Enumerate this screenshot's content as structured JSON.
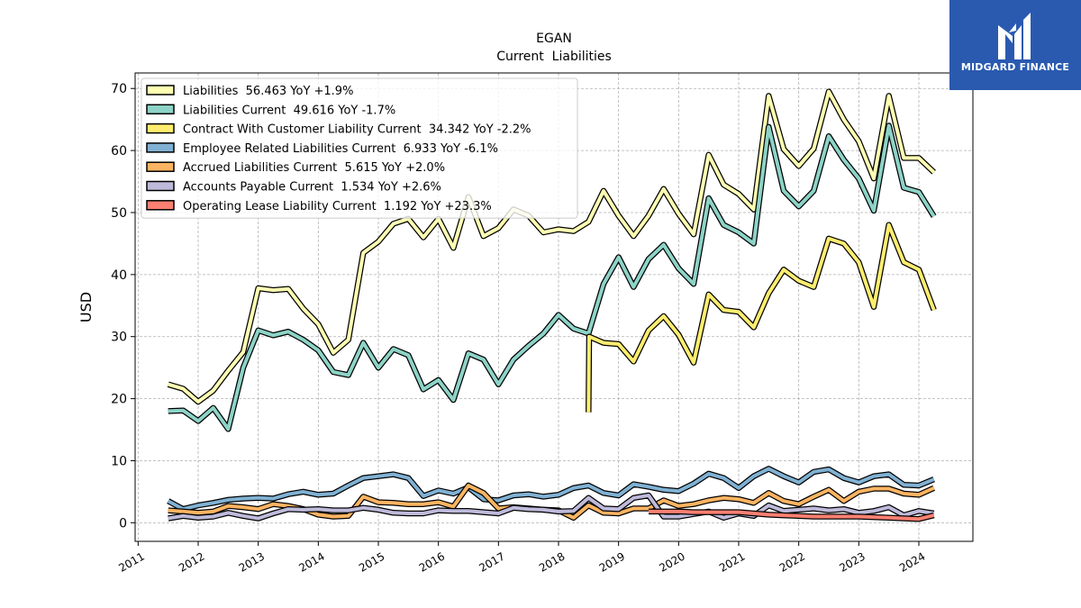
{
  "chart_data": {
    "type": "line",
    "title": "EGAN",
    "subtitle": "Current  Liabilities",
    "ylabel": "USD",
    "xlabel": "",
    "ylim": [
      -3,
      72.5
    ],
    "yticks": [
      0,
      10,
      20,
      30,
      40,
      50,
      60,
      70
    ],
    "xlim": [
      2010.95,
      2024.9
    ],
    "xticks": [
      2011,
      2012,
      2013,
      2014,
      2015,
      2016,
      2017,
      2018,
      2019,
      2020,
      2021,
      2022,
      2023,
      2024
    ],
    "xtick_labels": [
      "2011",
      "2012",
      "2013",
      "2014",
      "2015",
      "2016",
      "2017",
      "2018",
      "2019",
      "2020",
      "2021",
      "2022",
      "2023",
      "2024"
    ],
    "grid": true,
    "legend_position": "top-left",
    "series": [
      {
        "name": "Liabilities",
        "legend_label": "Liabilities  56.463 YoY +1.9%",
        "color": "#ffffb3",
        "x": [
          2011.5,
          2011.75,
          2012.0,
          2012.25,
          2012.5,
          2012.75,
          2013.0,
          2013.25,
          2013.5,
          2013.75,
          2014.0,
          2014.25,
          2014.5,
          2014.75,
          2015.0,
          2015.25,
          2015.5,
          2015.75,
          2016.0,
          2016.25,
          2016.5,
          2016.75,
          2017.0,
          2017.25,
          2017.5,
          2017.75,
          2018.0,
          2018.25,
          2018.5,
          2018.75,
          2019.0,
          2019.25,
          2019.5,
          2019.75,
          2020.0,
          2020.25,
          2020.5,
          2020.75,
          2021.0,
          2021.25,
          2021.5,
          2021.75,
          2022.0,
          2022.25,
          2022.5,
          2022.75,
          2023.0,
          2023.25,
          2023.5,
          2023.75,
          2024.0,
          2024.25
        ],
        "values": [
          22.3,
          21.6,
          19.5,
          21.3,
          24.5,
          27.5,
          37.8,
          37.5,
          37.7,
          34.5,
          32.0,
          27.4,
          29.5,
          43.5,
          45.3,
          48.2,
          49.0,
          46.0,
          49.0,
          44.3,
          52.5,
          46.2,
          47.5,
          50.5,
          49.5,
          46.8,
          47.3,
          47.0,
          48.5,
          53.5,
          49.5,
          46.2,
          49.5,
          53.8,
          49.8,
          46.5,
          59.3,
          54.5,
          53.0,
          50.5,
          68.8,
          60.2,
          57.5,
          60.3,
          69.5,
          65.0,
          61.5,
          55.5,
          68.8,
          58.8,
          58.8,
          56.5
        ]
      },
      {
        "name": "Liabilities Current",
        "legend_label": "Liabilities Current  49.616 YoY -1.7%",
        "color": "#8dd3c7",
        "x": [
          2011.5,
          2011.75,
          2012.0,
          2012.25,
          2012.5,
          2012.75,
          2013.0,
          2013.25,
          2013.5,
          2013.75,
          2014.0,
          2014.25,
          2014.5,
          2014.75,
          2015.0,
          2015.25,
          2015.5,
          2015.75,
          2016.0,
          2016.25,
          2016.5,
          2016.75,
          2017.0,
          2017.25,
          2017.5,
          2017.75,
          2018.0,
          2018.25,
          2018.5,
          2018.75,
          2019.0,
          2019.25,
          2019.5,
          2019.75,
          2020.0,
          2020.25,
          2020.5,
          2020.75,
          2021.0,
          2021.25,
          2021.5,
          2021.75,
          2022.0,
          2022.25,
          2022.5,
          2022.75,
          2023.0,
          2023.25,
          2023.5,
          2023.75,
          2024.0,
          2024.25
        ],
        "values": [
          18.0,
          18.1,
          16.4,
          18.5,
          15.1,
          25.0,
          31.0,
          30.2,
          30.8,
          29.5,
          27.8,
          24.3,
          23.8,
          29.0,
          25.0,
          28.0,
          27.0,
          21.5,
          23.0,
          19.8,
          27.3,
          26.3,
          22.3,
          26.3,
          28.5,
          30.5,
          33.5,
          31.3,
          30.5,
          38.5,
          42.8,
          38.0,
          42.5,
          44.8,
          41.0,
          38.5,
          52.3,
          48.0,
          46.8,
          45.0,
          63.8,
          53.5,
          51.0,
          53.5,
          62.3,
          58.5,
          55.5,
          50.3,
          64.0,
          54.0,
          53.3,
          49.4
        ]
      },
      {
        "name": "Contract With Customer Liability Current",
        "legend_label": "Contract With Customer Liability Current  34.342 YoY -2.2%",
        "color": "#ffed6f",
        "x": [
          2018.5,
          2018.51,
          2018.75,
          2019.0,
          2019.25,
          2019.5,
          2019.75,
          2020.0,
          2020.25,
          2020.5,
          2020.75,
          2021.0,
          2021.25,
          2021.5,
          2021.75,
          2022.0,
          2022.25,
          2022.5,
          2022.75,
          2023.0,
          2023.25,
          2023.5,
          2023.75,
          2024.0,
          2024.25
        ],
        "values": [
          17.8,
          30.0,
          29.0,
          28.8,
          26.0,
          31.0,
          33.3,
          30.3,
          25.8,
          36.8,
          34.3,
          34.0,
          31.5,
          37.0,
          40.8,
          39.0,
          38.0,
          45.8,
          45.0,
          42.0,
          34.8,
          48.0,
          42.0,
          40.8,
          34.3
        ]
      },
      {
        "name": "Employee Related Liabilities Current",
        "legend_label": "Employee Related Liabilities Current  6.933 YoY -6.1%",
        "color": "#80b1d3",
        "x": [
          2011.5,
          2011.75,
          2012.0,
          2012.25,
          2012.5,
          2012.75,
          2013.0,
          2013.25,
          2013.5,
          2013.75,
          2014.0,
          2014.25,
          2014.5,
          2014.75,
          2015.0,
          2015.25,
          2015.5,
          2015.75,
          2016.0,
          2016.25,
          2016.5,
          2016.75,
          2017.0,
          2017.25,
          2017.5,
          2017.75,
          2018.0,
          2018.25,
          2018.5,
          2018.75,
          2019.0,
          2019.25,
          2019.5,
          2019.75,
          2020.0,
          2020.25,
          2020.5,
          2020.75,
          2021.0,
          2021.25,
          2021.5,
          2021.75,
          2022.0,
          2022.25,
          2022.5,
          2022.75,
          2023.0,
          2023.25,
          2023.5,
          2023.75,
          2024.0,
          2024.25
        ],
        "values": [
          3.5,
          2.2,
          2.8,
          3.2,
          3.7,
          3.9,
          4.0,
          3.9,
          4.6,
          5.0,
          4.5,
          4.7,
          6.0,
          7.2,
          7.5,
          7.8,
          7.2,
          4.3,
          5.2,
          4.7,
          5.7,
          3.8,
          3.6,
          4.4,
          4.6,
          4.2,
          4.5,
          5.6,
          6.0,
          4.8,
          4.4,
          6.2,
          5.8,
          5.3,
          5.1,
          6.3,
          7.9,
          7.2,
          5.6,
          7.5,
          8.7,
          7.5,
          6.5,
          8.2,
          8.6,
          7.2,
          6.5,
          7.5,
          7.8,
          6.1,
          6.0,
          7.0
        ]
      },
      {
        "name": "Accrued Liabilities Current",
        "legend_label": "Accrued Liabilities Current  5.615 YoY +2.0%",
        "color": "#fdb462",
        "x": [
          2011.5,
          2011.75,
          2012.0,
          2012.25,
          2012.5,
          2012.75,
          2013.0,
          2013.25,
          2013.5,
          2013.75,
          2014.0,
          2014.25,
          2014.5,
          2014.75,
          2015.0,
          2015.25,
          2015.5,
          2015.75,
          2016.0,
          2016.25,
          2016.5,
          2016.75,
          2017.0,
          2017.25,
          2017.5,
          2017.75,
          2018.0,
          2018.25,
          2018.5,
          2018.75,
          2019.0,
          2019.25,
          2019.5,
          2019.75,
          2020.0,
          2020.25,
          2020.5,
          2020.75,
          2021.0,
          2021.25,
          2021.5,
          2021.75,
          2022.0,
          2022.25,
          2022.5,
          2022.75,
          2023.0,
          2023.25,
          2023.5,
          2023.75,
          2024.0,
          2024.25
        ],
        "values": [
          2.0,
          1.8,
          1.6,
          1.8,
          2.7,
          2.5,
          2.2,
          3.0,
          2.7,
          2.2,
          1.3,
          1.0,
          1.1,
          4.2,
          3.3,
          3.2,
          3.0,
          3.0,
          3.3,
          2.6,
          6.0,
          4.8,
          2.3,
          2.5,
          2.3,
          2.1,
          2.0,
          0.8,
          2.8,
          1.6,
          1.5,
          2.3,
          2.3,
          3.6,
          2.7,
          3.0,
          3.6,
          4.0,
          3.8,
          3.2,
          4.8,
          3.5,
          3.0,
          4.2,
          5.3,
          3.5,
          5.0,
          5.5,
          5.5,
          4.7,
          4.5,
          5.6
        ]
      },
      {
        "name": "Accounts Payable Current",
        "legend_label": "Accounts Payable Current  1.534 YoY +2.6%",
        "color": "#bebada",
        "x": [
          2011.5,
          2011.75,
          2012.0,
          2012.25,
          2012.5,
          2012.75,
          2013.0,
          2013.25,
          2013.5,
          2013.75,
          2014.0,
          2014.25,
          2014.5,
          2014.75,
          2015.0,
          2015.25,
          2015.5,
          2015.75,
          2016.0,
          2016.25,
          2016.5,
          2016.75,
          2017.0,
          2017.25,
          2017.5,
          2017.75,
          2018.0,
          2018.25,
          2018.5,
          2018.75,
          2019.0,
          2019.25,
          2019.5,
          2019.75,
          2020.0,
          2020.25,
          2020.5,
          2020.75,
          2021.0,
          2021.25,
          2021.5,
          2021.75,
          2022.0,
          2022.25,
          2022.5,
          2022.75,
          2023.0,
          2023.25,
          2023.5,
          2023.75,
          2024.0,
          2024.25
        ],
        "values": [
          0.7,
          1.1,
          0.8,
          1.0,
          1.6,
          1.1,
          0.7,
          1.5,
          2.2,
          2.1,
          2.2,
          2.0,
          2.0,
          2.4,
          2.1,
          1.6,
          1.5,
          1.5,
          2.0,
          1.9,
          1.9,
          1.7,
          1.5,
          2.4,
          2.2,
          2.1,
          1.8,
          1.9,
          4.0,
          2.3,
          2.2,
          4.0,
          4.4,
          1.0,
          1.0,
          1.4,
          1.8,
          0.8,
          1.5,
          1.1,
          2.8,
          1.9,
          2.1,
          2.3,
          2.0,
          2.2,
          1.6,
          1.9,
          2.5,
          1.2,
          1.9,
          1.5
        ]
      },
      {
        "name": "Operating Lease Liability Current",
        "legend_label": "Operating Lease Liability Current  1.192 YoY +23.3%",
        "color": "#fb8072",
        "x": [
          2019.5,
          2019.75,
          2020.0,
          2020.25,
          2020.5,
          2020.75,
          2021.0,
          2021.25,
          2021.5,
          2021.75,
          2022.0,
          2022.25,
          2022.5,
          2022.75,
          2023.0,
          2023.25,
          2023.5,
          2023.75,
          2024.0,
          2024.25
        ],
        "values": [
          1.8,
          1.8,
          1.8,
          1.7,
          1.7,
          1.7,
          1.7,
          1.5,
          1.3,
          1.2,
          1.1,
          1.0,
          1.0,
          1.0,
          1.0,
          0.9,
          0.8,
          0.7,
          0.6,
          1.2
        ]
      }
    ]
  },
  "logo": {
    "text": "MIDGARD FINANCE",
    "background": "#2a5ab0"
  }
}
